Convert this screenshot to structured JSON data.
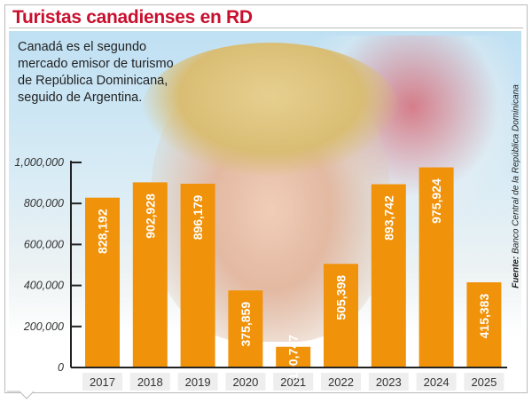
{
  "header": {
    "title": "Turistas canadienses en RD"
  },
  "description": "Canadá es el segundo\nmercado emisor de turismo\nde República Dominicana,\nseguido de Argentina.",
  "source": {
    "label": "Fuente:",
    "text": "Banco Central de la República Dominicana"
  },
  "colors": {
    "bar": "#f0920a",
    "title": "#c8102e"
  },
  "chart_data": {
    "type": "bar",
    "title": "Turistas canadienses en RD",
    "categories": [
      "2017",
      "2018",
      "2019",
      "2020",
      "2021",
      "2022",
      "2023",
      "2024",
      "2025"
    ],
    "values": [
      828192,
      902928,
      896179,
      375859,
      100747,
      505398,
      893742,
      975924,
      415383
    ],
    "value_labels": [
      "828,192",
      "902,928",
      "896,179",
      "375,859",
      "100,747",
      "505,398",
      "893,742",
      "975,924",
      "415,383"
    ],
    "ylim": [
      0,
      1000000
    ],
    "yticks": [
      0,
      200000,
      400000,
      600000,
      800000,
      1000000
    ],
    "ytick_labels": [
      "0",
      "200,000",
      "400,000",
      "600,000",
      "800,000",
      "1,000,000"
    ],
    "xlabel": "",
    "ylabel": "",
    "grid": false,
    "legend": "none"
  }
}
